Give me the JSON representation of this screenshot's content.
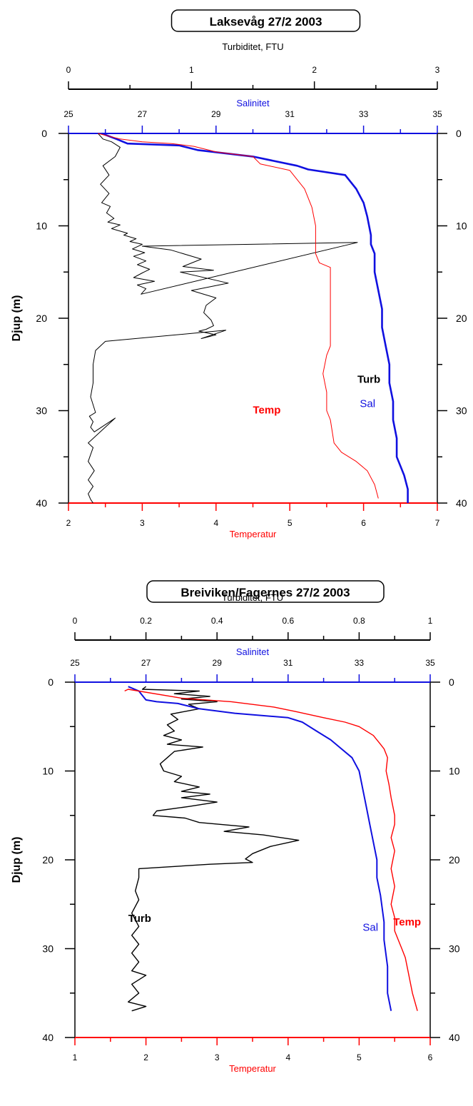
{
  "chart_data": [
    {
      "type": "line",
      "title": "Laksevåg 27/2 2003",
      "ylabel": "Djup (m)",
      "ylim": [
        40,
        0
      ],
      "yticks": [
        0,
        10,
        20,
        30,
        40
      ],
      "colors": {
        "turb": "#000000",
        "sal": "#1010e0",
        "temp": "#ff0000"
      },
      "axes": {
        "turbidity": {
          "label": "Turbiditet, FTU",
          "lim": [
            0,
            3
          ],
          "ticks": [
            0,
            1,
            2,
            3
          ],
          "minor": 1
        },
        "salinity": {
          "label": "Salinitet",
          "lim": [
            25,
            35
          ],
          "ticks": [
            25,
            27,
            29,
            31,
            33,
            35
          ],
          "minor": 1
        },
        "temperature": {
          "label": "Temperatur",
          "lim": [
            2,
            7
          ],
          "ticks": [
            2,
            3,
            4,
            5,
            6,
            7
          ],
          "minor": 1
        }
      },
      "series": [
        {
          "name": "Turb",
          "key": "turb",
          "axis": "turbidity",
          "label_at": [
            2.35,
            27
          ],
          "x": [
            0.24,
            0.28,
            0.35,
            0.42,
            0.38,
            0.28,
            0.33,
            0.26,
            0.33,
            0.27,
            0.34,
            0.31,
            0.37,
            0.32,
            0.42,
            0.35,
            0.48,
            0.45,
            0.55,
            0.5,
            0.6,
            0.52,
            0.62,
            0.53,
            0.63,
            0.56,
            0.66,
            0.6,
            0.53,
            0.7,
            0.56,
            0.63,
            0.59,
            2.35,
            0.6,
            0.83,
            1.08,
            0.93,
            1.18,
            0.91,
            1.3,
            1.0,
            1.2,
            1.12,
            1.1,
            1.16,
            1.18,
            1.12,
            1.06,
            1.2,
            1.08,
            1.28,
            0.3,
            0.22,
            0.2,
            0.2,
            0.18,
            0.22,
            0.17,
            0.2,
            0.18,
            0.21,
            0.38,
            0.16,
            0.2,
            0.16,
            0.21,
            0.16,
            0.2,
            0.16,
            0.18,
            0.2
          ],
          "y": [
            0,
            0.6,
            0.9,
            1.5,
            2.5,
            3.5,
            4.5,
            5.5,
            6.5,
            7.5,
            7.9,
            8.6,
            9.2,
            9.6,
            9.9,
            10.3,
            10.8,
            11.0,
            11.4,
            11.7,
            12.0,
            12.5,
            12.9,
            13.3,
            13.8,
            14.2,
            14.7,
            15.1,
            15.6,
            16.0,
            16.4,
            16.8,
            17.4,
            11.8,
            12.2,
            12.6,
            13.6,
            14.4,
            14.8,
            15.0,
            16.2,
            17.0,
            17.8,
            18.6,
            19.4,
            20.2,
            20.8,
            21.2,
            21.4,
            21.8,
            22.2,
            21.3,
            22.5,
            23.5,
            25,
            27,
            28.5,
            30.2,
            30.6,
            31.2,
            31.8,
            32.3,
            30.8,
            33.5,
            34.0,
            35.5,
            36.5,
            37.5,
            38.2,
            39.0,
            39.6,
            40
          ]
        },
        {
          "name": "Sal",
          "key": "sal",
          "axis": "salinity",
          "label_at": [
            32.9,
            29.6
          ],
          "x": [
            25.9,
            26.3,
            26.6,
            28.0,
            28.5,
            30.0,
            31.2,
            31.5,
            32.5,
            32.8,
            33.0,
            33.1,
            33.2,
            33.2,
            33.3,
            33.3,
            33.4,
            33.5,
            33.5,
            33.6,
            33.7,
            33.7,
            33.8,
            33.8,
            33.9,
            33.9,
            34.0,
            34.1,
            34.2,
            34.2
          ],
          "y": [
            0,
            0.6,
            1.1,
            1.3,
            1.8,
            2.5,
            3.5,
            3.9,
            4.5,
            6.0,
            7.5,
            9.0,
            11.0,
            12.0,
            13.0,
            15.0,
            17.0,
            19.0,
            21.0,
            23.0,
            25.0,
            27.0,
            29.0,
            31.0,
            33.0,
            35.0,
            36.0,
            37.0,
            38.5,
            40
          ]
        },
        {
          "name": "Temp",
          "key": "temp",
          "axis": "temperature",
          "label_at": [
            4.5,
            30.3
          ],
          "x": [
            2.4,
            2.7,
            3.0,
            3.4,
            3.7,
            4.0,
            4.5,
            4.6,
            5.0,
            5.2,
            5.3,
            5.35,
            5.35,
            5.4,
            5.55,
            5.55,
            5.55,
            5.55,
            5.5,
            5.45,
            5.5,
            5.5,
            5.55,
            5.6,
            5.7,
            5.9,
            6.05,
            6.15,
            6.2
          ],
          "y": [
            0,
            0.6,
            0.9,
            1.1,
            1.4,
            2.0,
            2.5,
            3.3,
            4.0,
            6.0,
            8.0,
            10.0,
            13.0,
            14.0,
            14.5,
            17.0,
            20.0,
            23.0,
            24.0,
            26.0,
            28.0,
            30.0,
            31.0,
            33.5,
            34.5,
            35.5,
            36.5,
            38.0,
            39.5
          ]
        }
      ]
    },
    {
      "type": "line",
      "title": "Breiviken/Fagernes 27/2 2003",
      "ylabel": "Djup (m)",
      "ylim": [
        40,
        0
      ],
      "yticks": [
        0,
        10,
        20,
        30,
        40
      ],
      "colors": {
        "turb": "#000000",
        "sal": "#1010e0",
        "temp": "#ff0000"
      },
      "axes": {
        "turbidity": {
          "label": "Turbiditet, FTU",
          "lim": [
            0,
            1
          ],
          "ticks": [
            0,
            0.2,
            0.4,
            0.6,
            0.8,
            1
          ],
          "minor": 1
        },
        "salinity": {
          "label": "Salinitet",
          "lim": [
            25,
            35
          ],
          "ticks": [
            25,
            27,
            29,
            31,
            33,
            35
          ],
          "minor": 1
        },
        "temperature": {
          "label": "Temperatur",
          "lim": [
            1,
            6
          ],
          "ticks": [
            1,
            2,
            3,
            4,
            5,
            6
          ],
          "minor": 1
        }
      },
      "series": [
        {
          "name": "Turb",
          "key": "turb",
          "axis": "turbidity",
          "label_at": [
            0.15,
            27
          ],
          "x": [
            0.2,
            0.19,
            0.35,
            0.28,
            0.38,
            0.3,
            0.4,
            0.32,
            0.35,
            0.27,
            0.29,
            0.26,
            0.28,
            0.25,
            0.3,
            0.26,
            0.36,
            0.28,
            0.26,
            0.24,
            0.25,
            0.3,
            0.28,
            0.35,
            0.3,
            0.38,
            0.3,
            0.4,
            0.32,
            0.23,
            0.22,
            0.31,
            0.35,
            0.49,
            0.42,
            0.53,
            0.63,
            0.55,
            0.5,
            0.48,
            0.5,
            0.38,
            0.18,
            0.18,
            0.17,
            0.18,
            0.16,
            0.18,
            0.16,
            0.18,
            0.16,
            0.18,
            0.16,
            0.2,
            0.16,
            0.18,
            0.15,
            0.2,
            0.16
          ],
          "y": [
            0.5,
            0.8,
            1.0,
            1.3,
            1.6,
            1.9,
            2.2,
            2.5,
            3.0,
            3.6,
            4.2,
            4.8,
            5.5,
            6.0,
            6.5,
            7.0,
            7.3,
            7.8,
            8.5,
            9.2,
            10.0,
            10.6,
            11.2,
            11.8,
            12.3,
            12.6,
            13.0,
            13.5,
            14.0,
            14.5,
            15.0,
            15.3,
            15.8,
            16.3,
            16.8,
            17.2,
            17.8,
            18.5,
            19.3,
            19.9,
            20.3,
            20.5,
            21.0,
            22.0,
            23.5,
            24.5,
            26.0,
            27.5,
            28.5,
            29.5,
            30.5,
            31.5,
            32.5,
            33.0,
            34.0,
            35.0,
            36.0,
            36.5,
            37.0
          ]
        },
        {
          "name": "Sal",
          "key": "sal",
          "axis": "salinity",
          "label_at": [
            33.1,
            28.0
          ],
          "x": [
            26.5,
            26.8,
            26.9,
            27.0,
            27.3,
            27.9,
            28.5,
            29.5,
            31.0,
            31.4,
            31.8,
            32.2,
            32.5,
            32.8,
            33.0,
            33.1,
            33.2,
            33.3,
            33.4,
            33.5,
            33.5,
            33.6,
            33.7,
            33.7,
            33.8,
            33.8,
            33.9
          ],
          "y": [
            0.5,
            1.0,
            1.5,
            2.0,
            2.2,
            2.4,
            3.0,
            3.5,
            4.0,
            4.5,
            5.5,
            6.5,
            7.5,
            8.5,
            10.0,
            12.0,
            14.0,
            16.0,
            18.0,
            20.0,
            22.0,
            24.0,
            27.0,
            29.0,
            32.0,
            35.0,
            37.0
          ]
        },
        {
          "name": "Temp",
          "key": "temp",
          "axis": "temperature",
          "label_at": [
            5.48,
            27.4
          ],
          "x": [
            1.7,
            1.75,
            2.5,
            3.2,
            3.8,
            4.1,
            4.5,
            4.8,
            5.0,
            5.2,
            5.3,
            5.35,
            5.4,
            5.38,
            5.42,
            5.45,
            5.5,
            5.5,
            5.45,
            5.5,
            5.45,
            5.5,
            5.45,
            5.5,
            5.5,
            5.55,
            5.6,
            5.65,
            5.7,
            5.75,
            5.82
          ],
          "y": [
            1.0,
            0.8,
            1.8,
            2.2,
            2.8,
            3.3,
            4.0,
            4.5,
            5.0,
            6.0,
            7.0,
            7.5,
            8.5,
            10.0,
            11.5,
            13.0,
            15.0,
            16.0,
            17.5,
            19.0,
            21.0,
            23.0,
            25.0,
            26.5,
            28.0,
            29.0,
            30.0,
            31.0,
            33.0,
            35.0,
            37.0
          ]
        }
      ]
    }
  ]
}
